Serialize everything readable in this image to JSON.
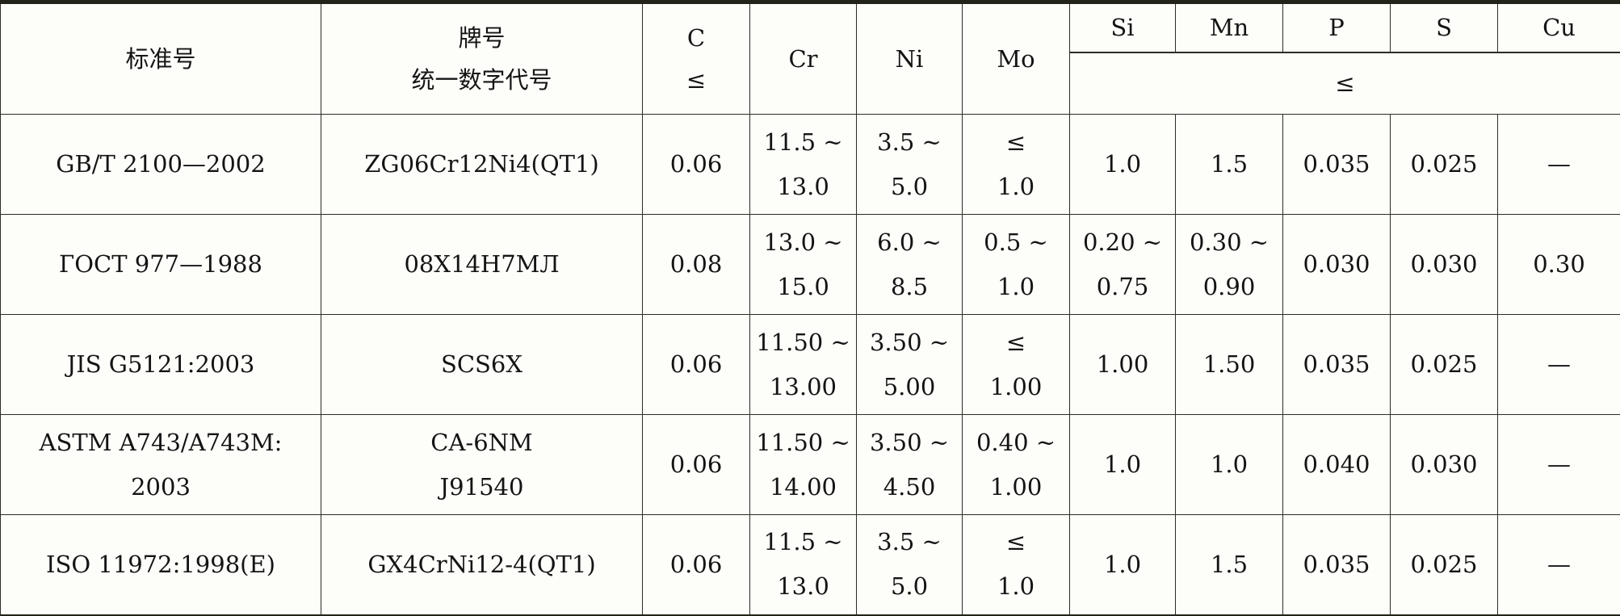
{
  "table": {
    "header": {
      "standard": "标准号",
      "grade_line1": "牌号",
      "grade_line2": "统一数字代号",
      "c_symbol": "C",
      "c_limit": "≤",
      "cr": "Cr",
      "ni": "Ni",
      "mo": "Mo",
      "elements": [
        "Si",
        "Mn",
        "P",
        "S",
        "Cu"
      ],
      "le_symbol": "≤"
    },
    "rows": [
      {
        "cells": [
          [
            "GB/T 2100—2002"
          ],
          [
            "ZG06Cr12Ni4(QT1)"
          ],
          [
            "0.06"
          ],
          [
            "11.5 ~",
            "13.0"
          ],
          [
            "3.5 ~",
            "5.0"
          ],
          [
            "≤",
            "1.0"
          ],
          [
            "1.0"
          ],
          [
            "1.5"
          ],
          [
            "0.035"
          ],
          [
            "0.025"
          ],
          [
            "—"
          ]
        ]
      },
      {
        "cells": [
          [
            "ГОСТ 977—1988"
          ],
          [
            "08Х14Н7МЛ"
          ],
          [
            "0.08"
          ],
          [
            "13.0 ~",
            "15.0"
          ],
          [
            "6.0 ~",
            "8.5"
          ],
          [
            "0.5 ~",
            "1.0"
          ],
          [
            "0.20 ~",
            "0.75"
          ],
          [
            "0.30 ~",
            "0.90"
          ],
          [
            "0.030"
          ],
          [
            "0.030"
          ],
          [
            "0.30"
          ]
        ]
      },
      {
        "cells": [
          [
            "JIS G5121:2003"
          ],
          [
            "SCS6X"
          ],
          [
            "0.06"
          ],
          [
            "11.50 ~",
            "13.00"
          ],
          [
            "3.50 ~",
            "5.00"
          ],
          [
            "≤",
            "1.00"
          ],
          [
            "1.00"
          ],
          [
            "1.50"
          ],
          [
            "0.035"
          ],
          [
            "0.025"
          ],
          [
            "—"
          ]
        ]
      },
      {
        "cells": [
          [
            "ASTM A743/A743M:",
            "2003"
          ],
          [
            "CA-6NM",
            "J91540"
          ],
          [
            "0.06"
          ],
          [
            "11.50 ~",
            "14.00"
          ],
          [
            "3.50 ~",
            "4.50"
          ],
          [
            "0.40 ~",
            "1.00"
          ],
          [
            "1.0"
          ],
          [
            "1.0"
          ],
          [
            "0.040"
          ],
          [
            "0.030"
          ],
          [
            "—"
          ]
        ]
      },
      {
        "cells": [
          [
            "ISO 11972:1998(E)"
          ],
          [
            "GX4CrNi12-4(QT1)"
          ],
          [
            "0.06"
          ],
          [
            "11.5 ~",
            "13.0"
          ],
          [
            "3.5 ~",
            "5.0"
          ],
          [
            "≤",
            "1.0"
          ],
          [
            "1.0"
          ],
          [
            "1.5"
          ],
          [
            "0.035"
          ],
          [
            "0.025"
          ],
          [
            "—"
          ]
        ]
      }
    ]
  }
}
